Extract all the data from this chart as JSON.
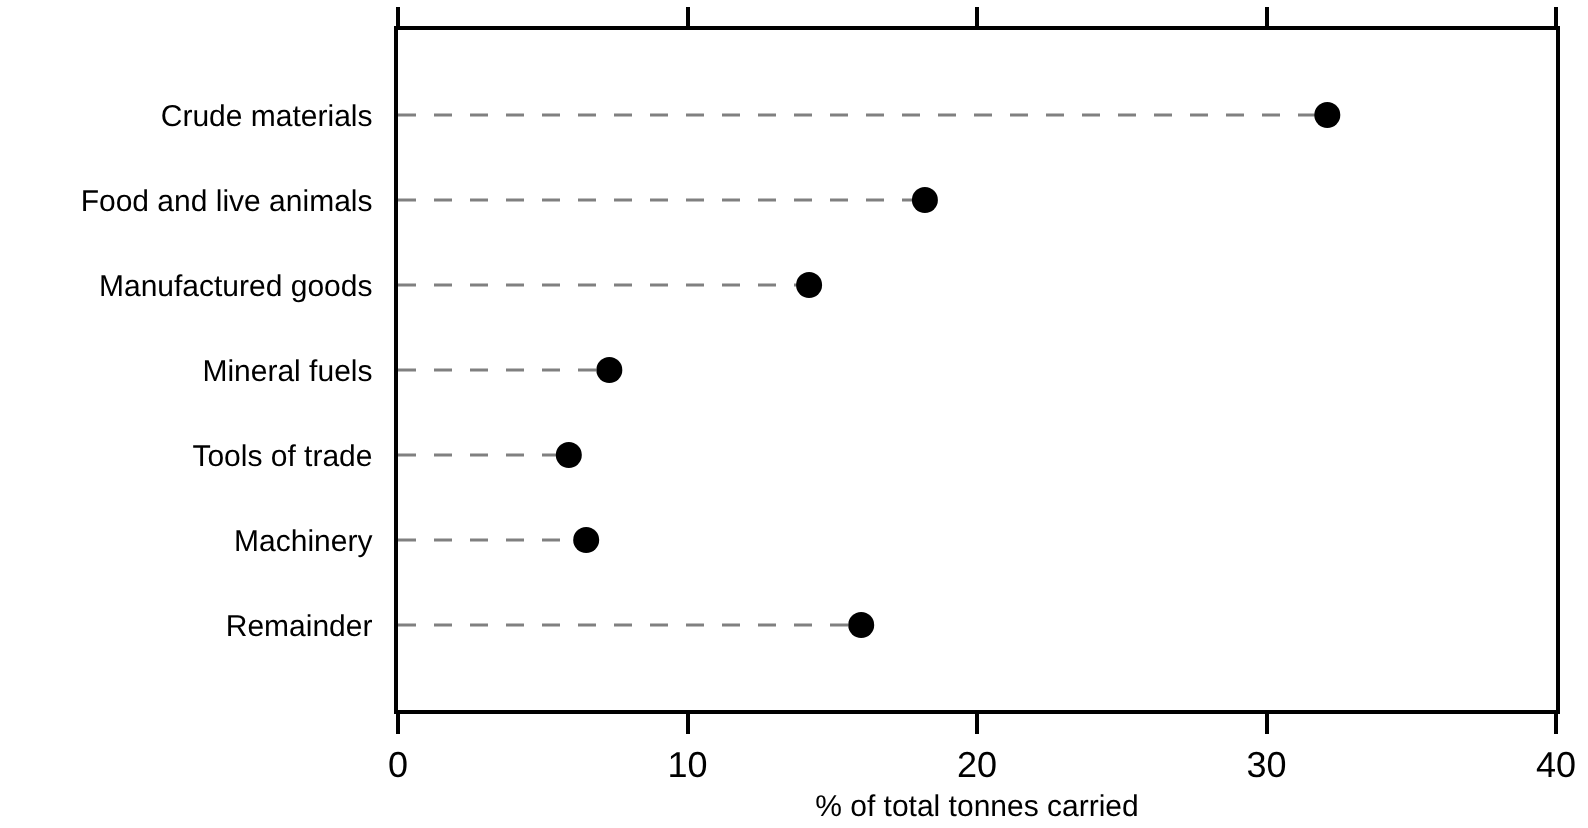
{
  "chart_data": {
    "type": "lollipop",
    "orientation": "horizontal",
    "xlabel": "% of total tonnes carried",
    "categories": [
      "Crude materials",
      "Food and live animals",
      "Manufactured goods",
      "Mineral fuels",
      "Tools of trade",
      "Machinery",
      "Remainder"
    ],
    "values": [
      32.1,
      18.2,
      14.2,
      7.3,
      5.9,
      6.5,
      16.0
    ],
    "color": "#000000",
    "marker": "circle",
    "line_style": "dashed",
    "xlim": [
      0,
      40
    ],
    "xticks": [
      0,
      10,
      20,
      30,
      40
    ]
  }
}
